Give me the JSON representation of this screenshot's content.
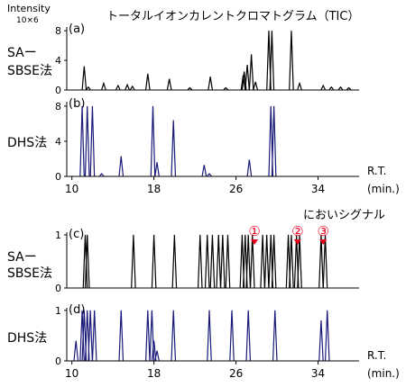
{
  "header": {
    "y_axis_label": "Intensity",
    "y_axis_scale": "10×6",
    "title": "トータルイオンカレントクロマトグラム（TIC）",
    "odor_title": "においシグナル"
  },
  "axis": {
    "rt_label": "R.T.",
    "unit_label": "(min.)"
  },
  "colors": {
    "sa_sbse": "#000000",
    "dhs": "#1a1a7a",
    "marker": "#e8001c",
    "axis": "#000000"
  },
  "chart_data": [
    {
      "type": "line",
      "panel_label": "(a)",
      "series": [
        {
          "name": "SAーSBSE法",
          "color": "#000000",
          "peaks": [
            [
              11.2,
              3.2
            ],
            [
              11.6,
              0.4
            ],
            [
              13.1,
              0.9
            ],
            [
              14.5,
              0.6
            ],
            [
              15.4,
              0.7
            ],
            [
              15.9,
              0.5
            ],
            [
              17.4,
              2.2
            ],
            [
              19.5,
              1.5
            ],
            [
              21.5,
              0.3
            ],
            [
              23.5,
              1.8
            ],
            [
              25.0,
              0.3
            ],
            [
              26.7,
              2.0
            ],
            [
              26.8,
              2.5
            ],
            [
              27.1,
              3.4
            ],
            [
              27.5,
              4.8
            ],
            [
              27.9,
              1.1
            ],
            [
              29.2,
              8.0
            ],
            [
              29.5,
              8.0
            ],
            [
              31.4,
              8.0
            ],
            [
              32.2,
              0.9
            ],
            [
              34.5,
              0.6
            ],
            [
              35.3,
              0.4
            ],
            [
              36.2,
              0.4
            ],
            [
              37.0,
              0.3
            ]
          ]
        }
      ],
      "series_label_lines": [
        "SAー",
        "SBSE法"
      ],
      "y_ticks": [
        "8",
        "4",
        "0"
      ],
      "ylim": [
        0,
        8.5
      ],
      "xlim": [
        9.5,
        38
      ],
      "x_ticks": [],
      "x_tick_labels": []
    },
    {
      "type": "line",
      "panel_label": "(b)",
      "series": [
        {
          "name": "DHS法",
          "color": "#1a1a7a",
          "peaks": [
            [
              11.0,
              8.0
            ],
            [
              11.5,
              8.0
            ],
            [
              12.0,
              8.0
            ],
            [
              12.9,
              0.3
            ],
            [
              14.8,
              2.3
            ],
            [
              17.9,
              8.0
            ],
            [
              18.3,
              1.6
            ],
            [
              19.9,
              6.4
            ],
            [
              22.9,
              1.3
            ],
            [
              23.4,
              0.3
            ],
            [
              27.3,
              1.9
            ],
            [
              29.4,
              8.0
            ],
            [
              29.7,
              8.0
            ]
          ]
        }
      ],
      "series_label_lines": [
        "DHS法"
      ],
      "y_ticks": [
        "8",
        "4",
        "0"
      ],
      "ylim": [
        0,
        8.5
      ],
      "xlim": [
        9.5,
        38
      ],
      "x_ticks": [
        10,
        18,
        26,
        34
      ],
      "x_tick_labels": [
        "10",
        "18",
        "26",
        "34"
      ]
    },
    {
      "type": "line",
      "panel_label": "(c)",
      "series": [
        {
          "name": "SAーSBSE法",
          "color": "#000000",
          "peaks": [
            [
              11.3,
              1
            ],
            [
              11.5,
              1
            ],
            [
              16.0,
              1
            ],
            [
              18.0,
              1
            ],
            [
              20.0,
              1
            ],
            [
              22.5,
              1
            ],
            [
              23.2,
              1
            ],
            [
              23.7,
              1
            ],
            [
              24.3,
              1
            ],
            [
              24.7,
              1
            ],
            [
              25.2,
              1
            ],
            [
              26.6,
              1
            ],
            [
              26.9,
              1
            ],
            [
              27.2,
              1
            ],
            [
              27.6,
              1
            ],
            [
              28.6,
              1
            ],
            [
              29.0,
              1
            ],
            [
              29.4,
              1
            ],
            [
              29.7,
              1
            ],
            [
              31.1,
              1
            ],
            [
              31.4,
              1
            ],
            [
              31.9,
              1
            ],
            [
              32.2,
              1
            ],
            [
              34.3,
              1
            ],
            [
              34.7,
              1
            ]
          ]
        }
      ],
      "series_label_lines": [
        "SAー",
        "SBSE法"
      ],
      "y_ticks": [
        "1",
        "0"
      ],
      "ylim": [
        0,
        1.05
      ],
      "xlim": [
        9.5,
        38
      ],
      "x_ticks": [],
      "x_tick_labels": [],
      "annotations": [
        {
          "text": "①",
          "x": 27.8
        },
        {
          "text": "②",
          "x": 32.0
        },
        {
          "text": "③",
          "x": 34.5
        }
      ]
    },
    {
      "type": "line",
      "panel_label": "(d)",
      "series": [
        {
          "name": "DHS法",
          "color": "#1a1a7a",
          "peaks": [
            [
              10.4,
              0.4
            ],
            [
              11.0,
              1
            ],
            [
              11.2,
              1
            ],
            [
              11.5,
              1
            ],
            [
              11.8,
              1
            ],
            [
              12.2,
              1
            ],
            [
              14.8,
              1
            ],
            [
              17.4,
              1
            ],
            [
              17.8,
              1
            ],
            [
              18.0,
              0.4
            ],
            [
              18.3,
              0.2
            ],
            [
              19.9,
              1
            ],
            [
              23.4,
              1
            ],
            [
              25.6,
              1
            ],
            [
              27.2,
              1
            ],
            [
              29.8,
              1
            ],
            [
              34.3,
              0.8
            ],
            [
              34.9,
              1
            ]
          ]
        }
      ],
      "series_label_lines": [
        "DHS法"
      ],
      "y_ticks": [
        "1",
        "0"
      ],
      "ylim": [
        0,
        1.05
      ],
      "xlim": [
        9.5,
        38
      ],
      "x_ticks": [
        10,
        18,
        26,
        34
      ],
      "x_tick_labels": [
        "10",
        "18",
        "26",
        "34"
      ]
    }
  ]
}
